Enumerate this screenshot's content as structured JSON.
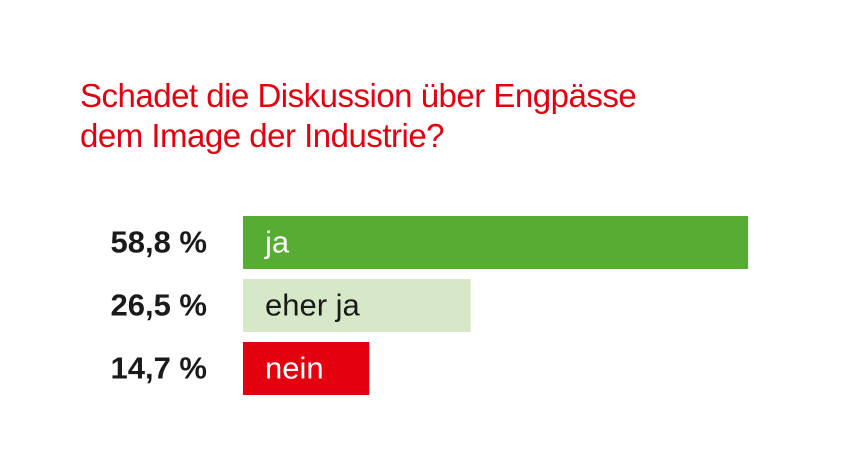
{
  "chart_data": {
    "type": "bar",
    "orientation": "horizontal",
    "title": "Schadet die Diskussion über Engpässe\ndem Image der Industrie?",
    "categories": [
      "ja",
      "eher ja",
      "nein"
    ],
    "values": [
      58.8,
      26.5,
      14.7
    ],
    "value_labels": [
      "58,8 %",
      "26,5 %",
      "14,7 %"
    ],
    "colors": [
      "#57ad34",
      "#d6e8c8",
      "#e3000f"
    ],
    "title_color": "#e3000f"
  }
}
